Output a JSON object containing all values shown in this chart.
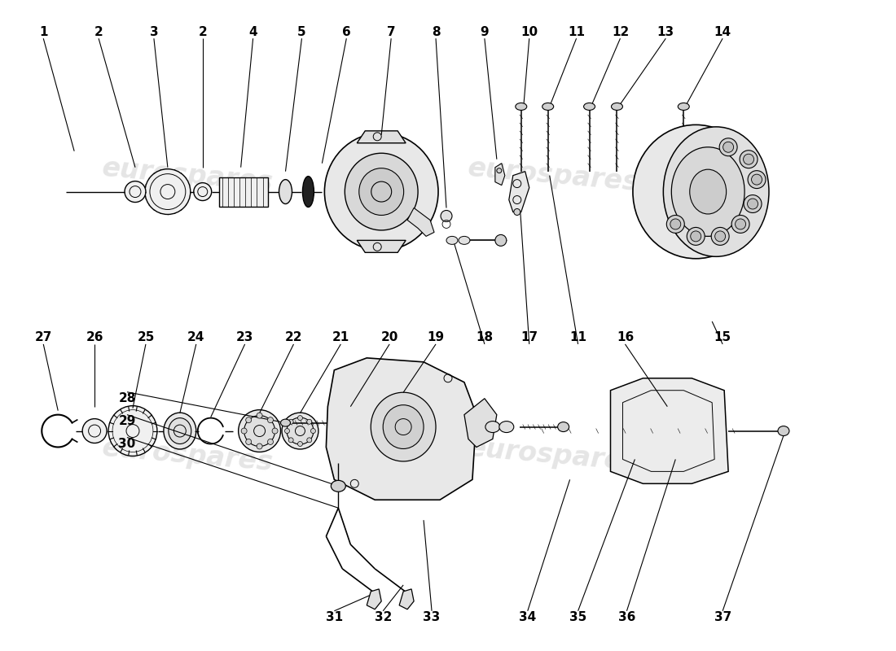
{
  "background_color": "#ffffff",
  "watermark_text": "eurospares",
  "fig_width": 11.0,
  "fig_height": 8.0,
  "dpi": 100,
  "watermark_color": "#cccccc",
  "label_fontsize": 11,
  "label_fontweight": "bold"
}
